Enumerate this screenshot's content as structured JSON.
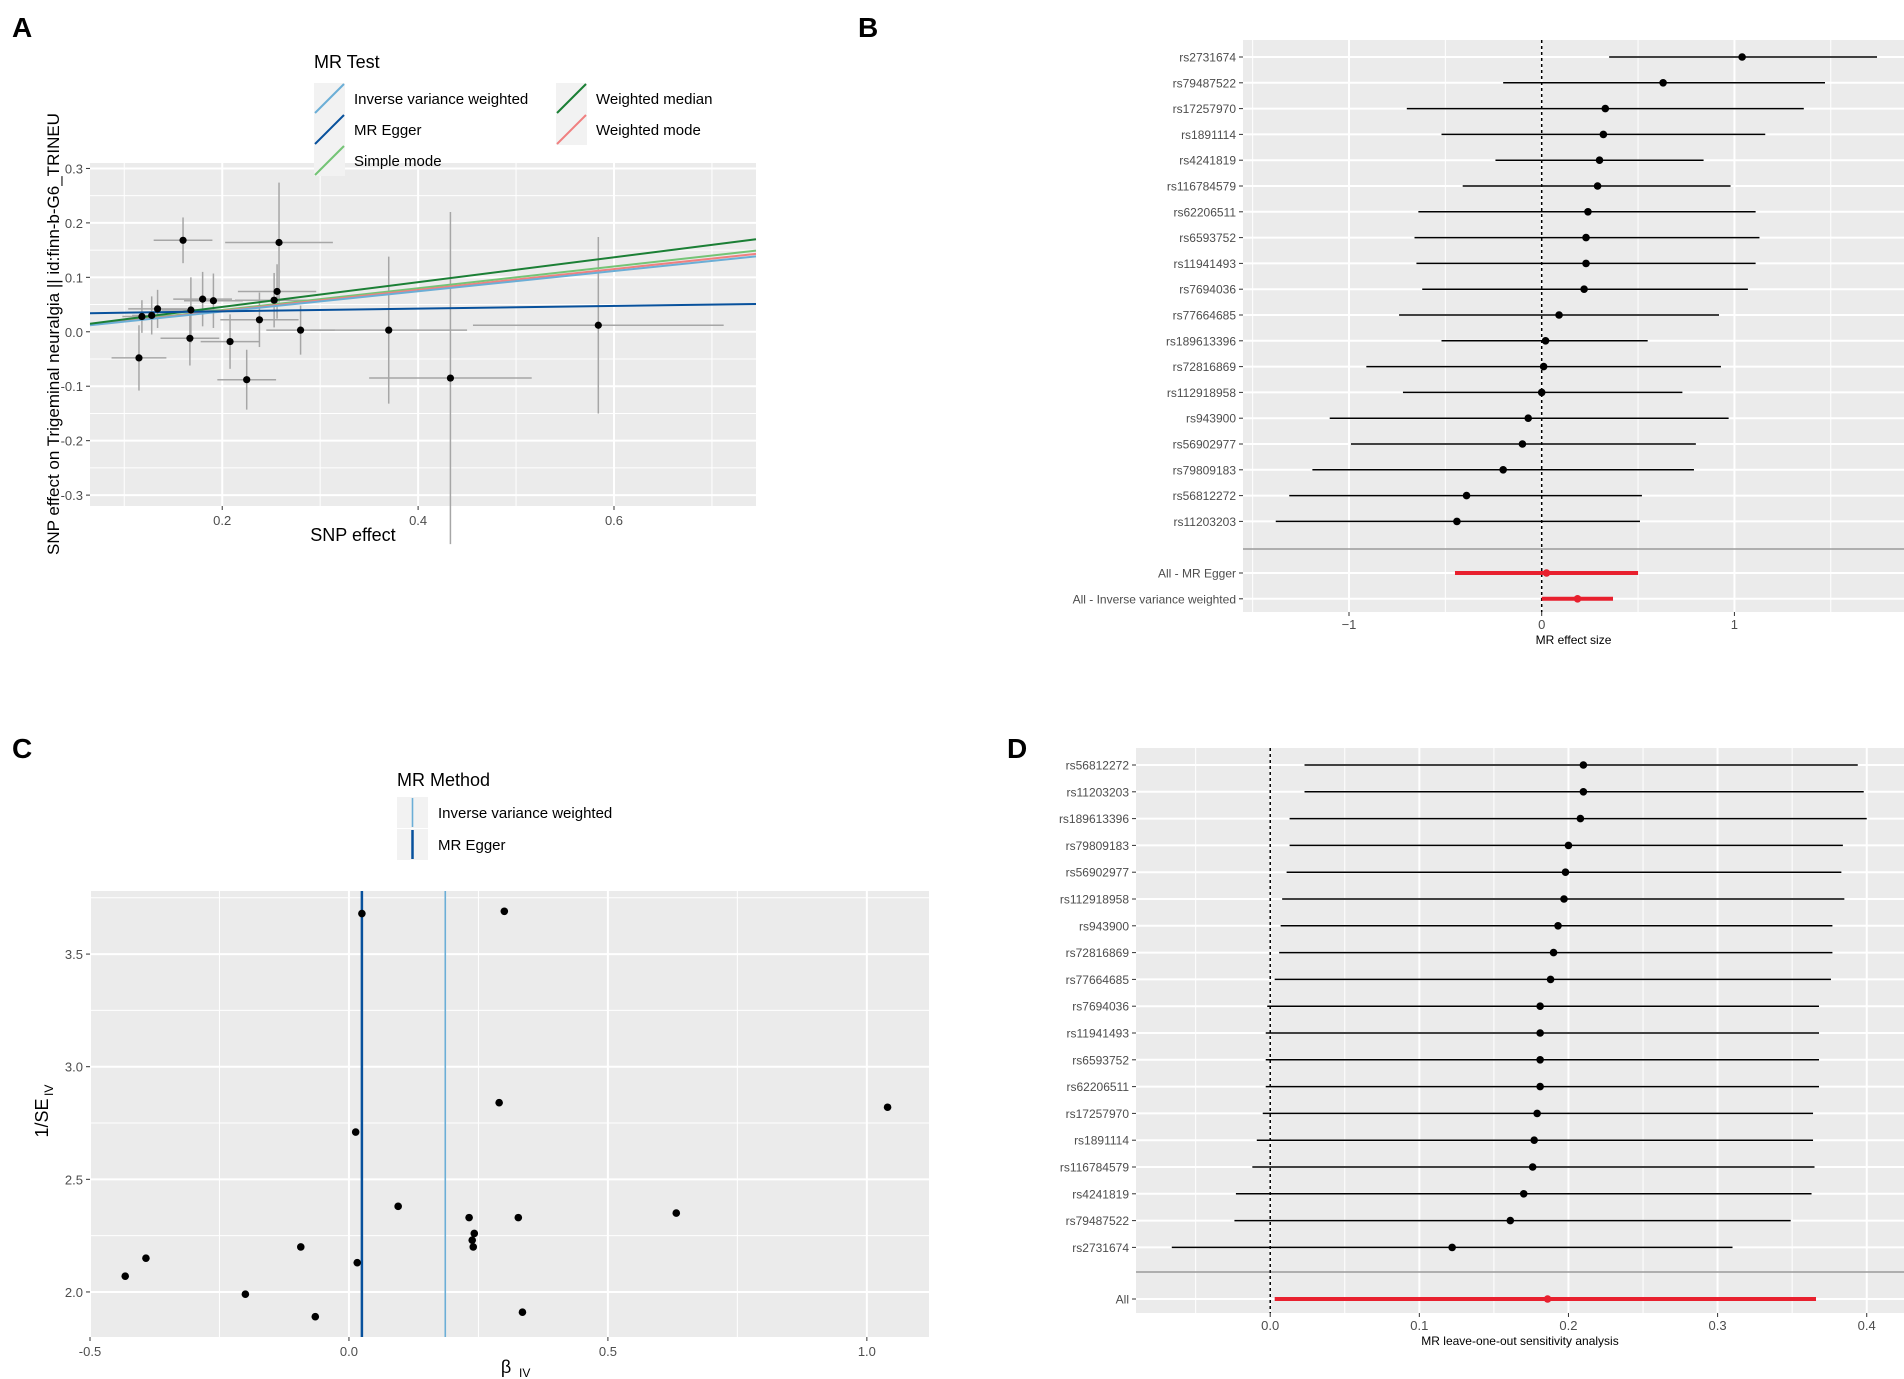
{
  "colors": {
    "ivw": "#6BAED6",
    "egger": "#08519C",
    "simple_mode": "#74C476",
    "weighted_median": "#1B7F35",
    "weighted_mode": "#F08080",
    "highlight": "#E8202E",
    "panel_bg": "#EBEBEB",
    "grid": "#FFFFFF",
    "errbar": "#A6A6A6"
  },
  "chart_data": [
    {
      "panel": "A",
      "type": "scatter",
      "xlabel": "SNP effect",
      "ylabel": "SNP effect on Trigeminal neuralgia || id:finn-b-G6_TRINEU",
      "xlim": [
        0.065,
        0.745
      ],
      "ylim": [
        -0.32,
        0.31
      ],
      "xticks": [
        "0.2",
        "0.4",
        "0.6"
      ],
      "yticks": [
        "0.3",
        "0.2",
        "0.1",
        "0.0",
        "-0.1",
        "-0.2",
        "-0.3"
      ],
      "legend_title": "MR Test",
      "legend": [
        "Inverse variance weighted",
        "MR Egger",
        "Simple mode",
        "Weighted median",
        "Weighted mode"
      ],
      "points": [
        {
          "x": 0.115,
          "y": -0.048,
          "xse": 0.028,
          "yse": 0.06
        },
        {
          "x": 0.118,
          "y": 0.028,
          "xse": 0.02,
          "yse": 0.03
        },
        {
          "x": 0.128,
          "y": 0.03,
          "xse": 0.02,
          "yse": 0.035
        },
        {
          "x": 0.134,
          "y": 0.042,
          "xse": 0.03,
          "yse": 0.035
        },
        {
          "x": 0.16,
          "y": 0.168,
          "xse": 0.03,
          "yse": 0.042
        },
        {
          "x": 0.167,
          "y": -0.012,
          "xse": 0.03,
          "yse": 0.05
        },
        {
          "x": 0.168,
          "y": 0.04,
          "xse": 0.03,
          "yse": 0.06
        },
        {
          "x": 0.18,
          "y": 0.06,
          "xse": 0.03,
          "yse": 0.05
        },
        {
          "x": 0.191,
          "y": 0.057,
          "xse": 0.03,
          "yse": 0.05
        },
        {
          "x": 0.208,
          "y": -0.018,
          "xse": 0.03,
          "yse": 0.05
        },
        {
          "x": 0.225,
          "y": -0.088,
          "xse": 0.03,
          "yse": 0.055
        },
        {
          "x": 0.238,
          "y": 0.022,
          "xse": 0.04,
          "yse": 0.05
        },
        {
          "x": 0.253,
          "y": 0.058,
          "xse": 0.04,
          "yse": 0.05
        },
        {
          "x": 0.256,
          "y": 0.074,
          "xse": 0.04,
          "yse": 0.05
        },
        {
          "x": 0.258,
          "y": 0.164,
          "xse": 0.055,
          "yse": 0.11
        },
        {
          "x": 0.28,
          "y": 0.003,
          "xse": 0.035,
          "yse": 0.045
        },
        {
          "x": 0.37,
          "y": 0.003,
          "xse": 0.08,
          "yse": 0.135
        },
        {
          "x": 0.433,
          "y": -0.085,
          "xse": 0.083,
          "yse": 0.305
        },
        {
          "x": 0.584,
          "y": 0.012,
          "xse": 0.128,
          "yse": 0.162
        }
      ],
      "lines": [
        {
          "name": "Inverse variance weighted",
          "intercept": 0.0,
          "slope": 0.186
        },
        {
          "name": "MR Egger",
          "intercept": 0.0325,
          "slope": 0.025
        },
        {
          "name": "Simple mode",
          "intercept": 0.0,
          "slope": 0.2
        },
        {
          "name": "Weighted median",
          "intercept": 0.0,
          "slope": 0.228
        },
        {
          "name": "Weighted mode",
          "intercept": 0.0,
          "slope": 0.192
        }
      ]
    },
    {
      "panel": "B",
      "type": "forest",
      "xlabel": "MR effect size",
      "xlim": [
        -1.55,
        1.88
      ],
      "xticks": [
        "−1",
        "0",
        "1"
      ],
      "refline": 0,
      "rows": [
        {
          "label": "rs2731674",
          "est": 1.04,
          "lo": 0.35,
          "hi": 1.74
        },
        {
          "label": "rs79487522",
          "est": 0.63,
          "lo": -0.2,
          "hi": 1.47
        },
        {
          "label": "rs17257970",
          "est": 0.33,
          "lo": -0.7,
          "hi": 1.36
        },
        {
          "label": "rs1891114",
          "est": 0.32,
          "lo": -0.52,
          "hi": 1.16
        },
        {
          "label": "rs4241819",
          "est": 0.3,
          "lo": -0.24,
          "hi": 0.84
        },
        {
          "label": "rs116784579",
          "est": 0.29,
          "lo": -0.41,
          "hi": 0.98
        },
        {
          "label": "rs62206511",
          "est": 0.24,
          "lo": -0.64,
          "hi": 1.11
        },
        {
          "label": "rs6593752",
          "est": 0.23,
          "lo": -0.66,
          "hi": 1.13
        },
        {
          "label": "rs11941493",
          "est": 0.23,
          "lo": -0.65,
          "hi": 1.11
        },
        {
          "label": "rs7694036",
          "est": 0.22,
          "lo": -0.62,
          "hi": 1.07
        },
        {
          "label": "rs77664685",
          "est": 0.09,
          "lo": -0.74,
          "hi": 0.92
        },
        {
          "label": "rs189613396",
          "est": 0.02,
          "lo": -0.52,
          "hi": 0.55
        },
        {
          "label": "rs72816869",
          "est": 0.01,
          "lo": -0.91,
          "hi": 0.93
        },
        {
          "label": "rs112918958",
          "est": 0.0,
          "lo": -0.72,
          "hi": 0.73
        },
        {
          "label": "rs943900",
          "est": -0.07,
          "lo": -1.1,
          "hi": 0.97
        },
        {
          "label": "rs56902977",
          "est": -0.1,
          "lo": -0.99,
          "hi": 0.8
        },
        {
          "label": "rs79809183",
          "est": -0.2,
          "lo": -1.19,
          "hi": 0.79
        },
        {
          "label": "rs56812272",
          "est": -0.39,
          "lo": -1.31,
          "hi": 0.52
        },
        {
          "label": "rs11203203",
          "est": -0.44,
          "lo": -1.38,
          "hi": 0.51
        }
      ],
      "summary": [
        {
          "label": "All - MR Egger",
          "est": 0.025,
          "lo": -0.45,
          "hi": 0.5
        },
        {
          "label": "All - Inverse variance weighted",
          "est": 0.186,
          "lo": 0.0,
          "hi": 0.37
        }
      ]
    },
    {
      "panel": "C",
      "type": "funnel",
      "xlabel": "β",
      "xlabel_sub": "IV",
      "ylabel": "1/SE",
      "ylabel_sub": "IV",
      "xlim": [
        -0.5,
        1.12
      ],
      "ylim": [
        1.8,
        3.78
      ],
      "xticks": [
        "-0.5",
        "0.0",
        "0.5",
        "1.0"
      ],
      "yticks": [
        "3.5",
        "3.0",
        "2.5",
        "2.0"
      ],
      "legend_title": "MR Method",
      "legend": [
        "Inverse variance weighted",
        "MR Egger"
      ],
      "vlines": [
        {
          "name": "Inverse variance weighted",
          "x": 0.186
        },
        {
          "name": "MR Egger",
          "x": 0.025
        }
      ],
      "points": [
        {
          "x": 0.025,
          "y": 3.68
        },
        {
          "x": 0.3,
          "y": 3.69
        },
        {
          "x": 0.29,
          "y": 2.84
        },
        {
          "x": 1.04,
          "y": 2.82
        },
        {
          "x": 0.013,
          "y": 2.71
        },
        {
          "x": 0.095,
          "y": 2.38
        },
        {
          "x": 0.232,
          "y": 2.33
        },
        {
          "x": 0.327,
          "y": 2.33
        },
        {
          "x": 0.632,
          "y": 2.35
        },
        {
          "x": 0.242,
          "y": 2.26
        },
        {
          "x": 0.238,
          "y": 2.23
        },
        {
          "x": 0.24,
          "y": 2.2
        },
        {
          "x": -0.093,
          "y": 2.2
        },
        {
          "x": 0.016,
          "y": 2.13
        },
        {
          "x": -0.392,
          "y": 2.15
        },
        {
          "x": -0.432,
          "y": 2.07
        },
        {
          "x": -0.2,
          "y": 1.99
        },
        {
          "x": -0.065,
          "y": 1.89
        },
        {
          "x": 0.335,
          "y": 1.91
        }
      ]
    },
    {
      "panel": "D",
      "type": "forest",
      "xlabel": "MR leave-one-out sensitivity analysis",
      "xlim": [
        -0.09,
        0.425
      ],
      "xticks": [
        "0.0",
        "0.1",
        "0.2",
        "0.3",
        "0.4"
      ],
      "refline": 0,
      "rows": [
        {
          "label": "rs56812272",
          "est": 0.21,
          "lo": 0.023,
          "hi": 0.394
        },
        {
          "label": "rs11203203",
          "est": 0.21,
          "lo": 0.023,
          "hi": 0.398
        },
        {
          "label": "rs189613396",
          "est": 0.208,
          "lo": 0.013,
          "hi": 0.4
        },
        {
          "label": "rs79809183",
          "est": 0.2,
          "lo": 0.013,
          "hi": 0.384
        },
        {
          "label": "rs56902977",
          "est": 0.198,
          "lo": 0.011,
          "hi": 0.383
        },
        {
          "label": "rs112918958",
          "est": 0.197,
          "lo": 0.008,
          "hi": 0.385
        },
        {
          "label": "rs943900",
          "est": 0.193,
          "lo": 0.007,
          "hi": 0.377
        },
        {
          "label": "rs72816869",
          "est": 0.19,
          "lo": 0.006,
          "hi": 0.377
        },
        {
          "label": "rs77664685",
          "est": 0.188,
          "lo": 0.003,
          "hi": 0.376
        },
        {
          "label": "rs7694036",
          "est": 0.181,
          "lo": -0.002,
          "hi": 0.368
        },
        {
          "label": "rs11941493",
          "est": 0.181,
          "lo": -0.003,
          "hi": 0.368
        },
        {
          "label": "rs6593752",
          "est": 0.181,
          "lo": -0.003,
          "hi": 0.368
        },
        {
          "label": "rs62206511",
          "est": 0.181,
          "lo": -0.003,
          "hi": 0.368
        },
        {
          "label": "rs17257970",
          "est": 0.179,
          "lo": -0.005,
          "hi": 0.364
        },
        {
          "label": "rs1891114",
          "est": 0.177,
          "lo": -0.009,
          "hi": 0.364
        },
        {
          "label": "rs116784579",
          "est": 0.176,
          "lo": -0.012,
          "hi": 0.365
        },
        {
          "label": "rs4241819",
          "est": 0.17,
          "lo": -0.023,
          "hi": 0.363
        },
        {
          "label": "rs79487522",
          "est": 0.161,
          "lo": -0.024,
          "hi": 0.349
        },
        {
          "label": "rs2731674",
          "est": 0.122,
          "lo": -0.066,
          "hi": 0.31
        }
      ],
      "summary": [
        {
          "label": "All",
          "est": 0.186,
          "lo": 0.003,
          "hi": 0.366
        }
      ]
    }
  ]
}
